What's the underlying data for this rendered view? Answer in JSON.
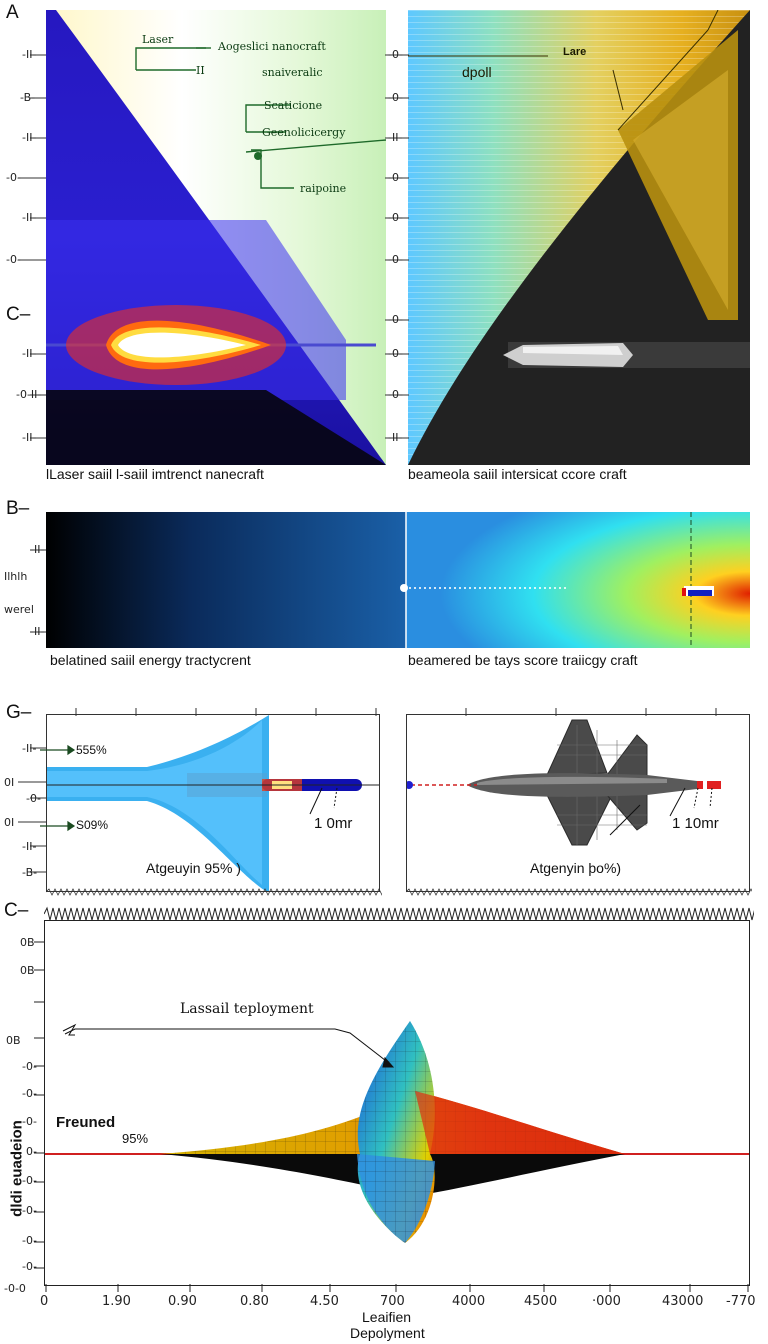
{
  "panel_labels": {
    "a": "A",
    "c_top": "C–",
    "b": "B–",
    "g": "G–",
    "c_bottom": "C–"
  },
  "panel_a_left": {
    "caption": "lLaser saiil l-saiil imtrenct nanecraft",
    "y_ticks": [
      "-II-",
      "-B-",
      "-II-",
      "-0-",
      "-II-",
      "-0-",
      "-II-",
      "-0-II-",
      "-II-"
    ],
    "annotations": [
      "Laser",
      "Aogeslici nanocraft",
      "II",
      "snaiveralic",
      "Scaticione",
      "Geenolicicergy",
      "raipoine"
    ]
  },
  "panel_a_right": {
    "caption": "beameola saiil intersicat ccore craft",
    "y_ticks": [
      "-0-",
      "-0-",
      "-II-",
      "-0-",
      "-0-",
      "-0-",
      "-0-",
      "-0-",
      "-0-",
      "-II-"
    ],
    "annotations": [
      "Lare",
      "dpoll"
    ]
  },
  "panel_b": {
    "caption_left": "belatined saiil energy tractycrent",
    "caption_right": "beamered be tays score traiicgy craft",
    "y_ticks": [
      "-II-",
      "Ilhlh",
      "werel",
      "-II-"
    ]
  },
  "panel_g_left": {
    "caption": "Atgeuyin 95% )",
    "y_ticks": [
      "-II-",
      "0I",
      "-0-",
      "0I",
      "-II-",
      "-B-"
    ],
    "labels": [
      "555%",
      "S09%"
    ],
    "scale": "1 0mr"
  },
  "panel_g_right": {
    "caption": "Atgenyin þo%)",
    "scale": "1 10mr"
  },
  "panel_c": {
    "ylabel": "dldi euadeion",
    "xlabel_1": "Leaifien",
    "xlabel_2": "Depolyment",
    "y_ticks": [
      "0B",
      "0B",
      "0B",
      "-0-",
      "-0-",
      "-0-",
      "0-",
      "-0-",
      "-0-",
      "-0-",
      "-0-",
      "-0-0"
    ],
    "x_ticks": [
      "0",
      "1.90",
      "0.90",
      "0.80",
      "4.50",
      "700",
      "4000",
      "4500",
      "·000",
      "43000",
      "-770"
    ],
    "annotation_deploy": "Lassail teployment",
    "annotation_freuned": "Freuned",
    "annotation_pct": "95%"
  },
  "colors": {
    "deep_blue": "#2a1fb8",
    "gold": "#d4a020",
    "red": "#d82010",
    "cyan": "#2fb6ff"
  }
}
